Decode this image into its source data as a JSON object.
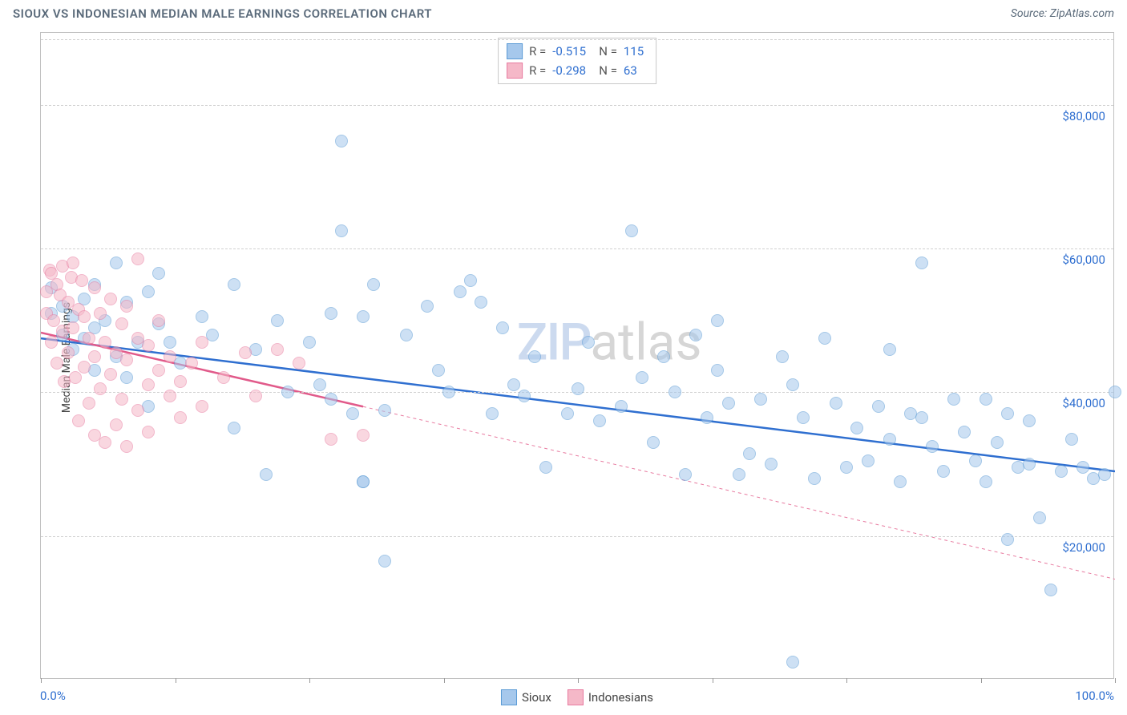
{
  "title": "SIOUX VS INDONESIAN MEDIAN MALE EARNINGS CORRELATION CHART",
  "source": "Source: ZipAtlas.com",
  "y_axis_label": "Median Male Earnings",
  "watermark": {
    "part1": "ZIP",
    "part2": "atlas"
  },
  "chart": {
    "type": "scatter",
    "xlim": [
      0,
      100
    ],
    "ylim": [
      0,
      90000
    ],
    "x_tick_positions": [
      0,
      12.5,
      25,
      37.5,
      50,
      62.5,
      75,
      87.5,
      100
    ],
    "x_tick_labels": {
      "first": "0.0%",
      "last": "100.0%"
    },
    "y_gridlines": [
      20000,
      40000,
      60000,
      80000
    ],
    "y_tick_labels": [
      "$20,000",
      "$40,000",
      "$60,000",
      "$80,000"
    ],
    "grid_color": "#d0d0d0",
    "border_color": "#c0c0c0",
    "background_color": "#ffffff",
    "marker_radius": 8,
    "marker_opacity": 0.55,
    "series": [
      {
        "name": "Sioux",
        "color_fill": "#a6c8ec",
        "color_stroke": "#5b9bd5",
        "R": "-0.515",
        "N": "115",
        "trend": {
          "x1": 0,
          "y1": 47500,
          "x2": 100,
          "y2": 29000,
          "color": "#2f6fd0",
          "width": 2.5,
          "dash": "none"
        },
        "trend_ext": null,
        "points": [
          [
            1,
            51000
          ],
          [
            1,
            54500
          ],
          [
            2,
            48000
          ],
          [
            2,
            52000
          ],
          [
            3,
            46000
          ],
          [
            3,
            50500
          ],
          [
            4,
            47500
          ],
          [
            4,
            53000
          ],
          [
            5,
            43000
          ],
          [
            5,
            49000
          ],
          [
            5,
            55000
          ],
          [
            6,
            50000
          ],
          [
            7,
            45000
          ],
          [
            7,
            58000
          ],
          [
            8,
            42000
          ],
          [
            8,
            52500
          ],
          [
            9,
            47000
          ],
          [
            10,
            38000
          ],
          [
            10,
            54000
          ],
          [
            11,
            49500
          ],
          [
            11,
            56500
          ],
          [
            12,
            47000
          ],
          [
            13,
            44000
          ],
          [
            15,
            50500
          ],
          [
            16,
            48000
          ],
          [
            18,
            35000
          ],
          [
            18,
            55000
          ],
          [
            20,
            46000
          ],
          [
            21,
            28500
          ],
          [
            22,
            50000
          ],
          [
            23,
            40000
          ],
          [
            25,
            47000
          ],
          [
            26,
            41000
          ],
          [
            27,
            39000
          ],
          [
            27,
            51000
          ],
          [
            28,
            75000
          ],
          [
            28,
            62500
          ],
          [
            29,
            37000
          ],
          [
            30,
            27500
          ],
          [
            30,
            50500
          ],
          [
            30,
            27500
          ],
          [
            31,
            55000
          ],
          [
            32,
            16500
          ],
          [
            32,
            37500
          ],
          [
            34,
            48000
          ],
          [
            36,
            52000
          ],
          [
            37,
            43000
          ],
          [
            38,
            40000
          ],
          [
            39,
            54000
          ],
          [
            40,
            55500
          ],
          [
            41,
            52500
          ],
          [
            42,
            37000
          ],
          [
            43,
            49000
          ],
          [
            44,
            41000
          ],
          [
            45,
            39500
          ],
          [
            46,
            45000
          ],
          [
            47,
            29500
          ],
          [
            49,
            37000
          ],
          [
            50,
            40500
          ],
          [
            51,
            47000
          ],
          [
            52,
            36000
          ],
          [
            54,
            38000
          ],
          [
            55,
            62500
          ],
          [
            56,
            42000
          ],
          [
            57,
            33000
          ],
          [
            58,
            45000
          ],
          [
            59,
            40000
          ],
          [
            60,
            28500
          ],
          [
            61,
            48000
          ],
          [
            62,
            36500
          ],
          [
            63,
            43000
          ],
          [
            63,
            50000
          ],
          [
            64,
            38500
          ],
          [
            65,
            28500
          ],
          [
            66,
            31500
          ],
          [
            67,
            39000
          ],
          [
            68,
            30000
          ],
          [
            69,
            45000
          ],
          [
            70,
            2500
          ],
          [
            70,
            41000
          ],
          [
            71,
            36500
          ],
          [
            72,
            28000
          ],
          [
            73,
            47500
          ],
          [
            74,
            38500
          ],
          [
            75,
            29500
          ],
          [
            76,
            35000
          ],
          [
            77,
            30500
          ],
          [
            78,
            38000
          ],
          [
            79,
            46000
          ],
          [
            79,
            33500
          ],
          [
            80,
            27500
          ],
          [
            81,
            37000
          ],
          [
            82,
            58000
          ],
          [
            82,
            36500
          ],
          [
            83,
            32500
          ],
          [
            84,
            29000
          ],
          [
            85,
            39000
          ],
          [
            86,
            34500
          ],
          [
            87,
            30500
          ],
          [
            88,
            27500
          ],
          [
            88,
            39000
          ],
          [
            89,
            33000
          ],
          [
            90,
            37000
          ],
          [
            90,
            19500
          ],
          [
            91,
            29500
          ],
          [
            92,
            30000
          ],
          [
            92,
            36000
          ],
          [
            93,
            22500
          ],
          [
            94,
            12500
          ],
          [
            95,
            29000
          ],
          [
            96,
            33500
          ],
          [
            97,
            29500
          ],
          [
            98,
            28000
          ],
          [
            99,
            28500
          ],
          [
            100,
            40000
          ]
        ]
      },
      {
        "name": "Indonesians",
        "color_fill": "#f5b8c8",
        "color_stroke": "#e87ba0",
        "R": "-0.298",
        "N": "63",
        "trend": {
          "x1": 0,
          "y1": 48300,
          "x2": 30,
          "y2": 38000,
          "color": "#e15a8a",
          "width": 2.5,
          "dash": "none"
        },
        "trend_ext": {
          "x1": 30,
          "y1": 38000,
          "x2": 100,
          "y2": 14000,
          "color": "#e87ba0",
          "width": 1,
          "dash": "4,4"
        },
        "points": [
          [
            0.5,
            54000
          ],
          [
            0.5,
            51000
          ],
          [
            0.8,
            57000
          ],
          [
            1,
            47000
          ],
          [
            1,
            56500
          ],
          [
            1.2,
            50000
          ],
          [
            1.5,
            55000
          ],
          [
            1.5,
            44000
          ],
          [
            1.8,
            53500
          ],
          [
            2,
            48500
          ],
          [
            2,
            57500
          ],
          [
            2.2,
            41500
          ],
          [
            2.5,
            52500
          ],
          [
            2.5,
            45500
          ],
          [
            2.8,
            56000
          ],
          [
            3,
            58000
          ],
          [
            3,
            49000
          ],
          [
            3.2,
            42000
          ],
          [
            3.5,
            51500
          ],
          [
            3.5,
            36000
          ],
          [
            3.8,
            55500
          ],
          [
            4,
            43500
          ],
          [
            4,
            50500
          ],
          [
            4.5,
            47500
          ],
          [
            4.5,
            38500
          ],
          [
            5,
            54500
          ],
          [
            5,
            34000
          ],
          [
            5,
            45000
          ],
          [
            5.5,
            51000
          ],
          [
            5.5,
            40500
          ],
          [
            6,
            47000
          ],
          [
            6,
            33000
          ],
          [
            6.5,
            42500
          ],
          [
            6.5,
            53000
          ],
          [
            7,
            45500
          ],
          [
            7,
            35500
          ],
          [
            7.5,
            49500
          ],
          [
            7.5,
            39000
          ],
          [
            8,
            44500
          ],
          [
            8,
            52000
          ],
          [
            8,
            32500
          ],
          [
            9,
            47500
          ],
          [
            9,
            37500
          ],
          [
            9,
            58500
          ],
          [
            10,
            41000
          ],
          [
            10,
            46500
          ],
          [
            10,
            34500
          ],
          [
            11,
            43000
          ],
          [
            11,
            50000
          ],
          [
            12,
            39500
          ],
          [
            12,
            45000
          ],
          [
            13,
            41500
          ],
          [
            13,
            36500
          ],
          [
            14,
            44000
          ],
          [
            15,
            38000
          ],
          [
            15,
            47000
          ],
          [
            17,
            42000
          ],
          [
            19,
            45500
          ],
          [
            20,
            39500
          ],
          [
            22,
            46000
          ],
          [
            24,
            44000
          ],
          [
            27,
            33500
          ],
          [
            30,
            34000
          ]
        ]
      }
    ]
  },
  "legend_bottom": [
    {
      "label": "Sioux",
      "fill": "#a6c8ec",
      "stroke": "#5b9bd5"
    },
    {
      "label": "Indonesians",
      "fill": "#f5b8c8",
      "stroke": "#e87ba0"
    }
  ]
}
